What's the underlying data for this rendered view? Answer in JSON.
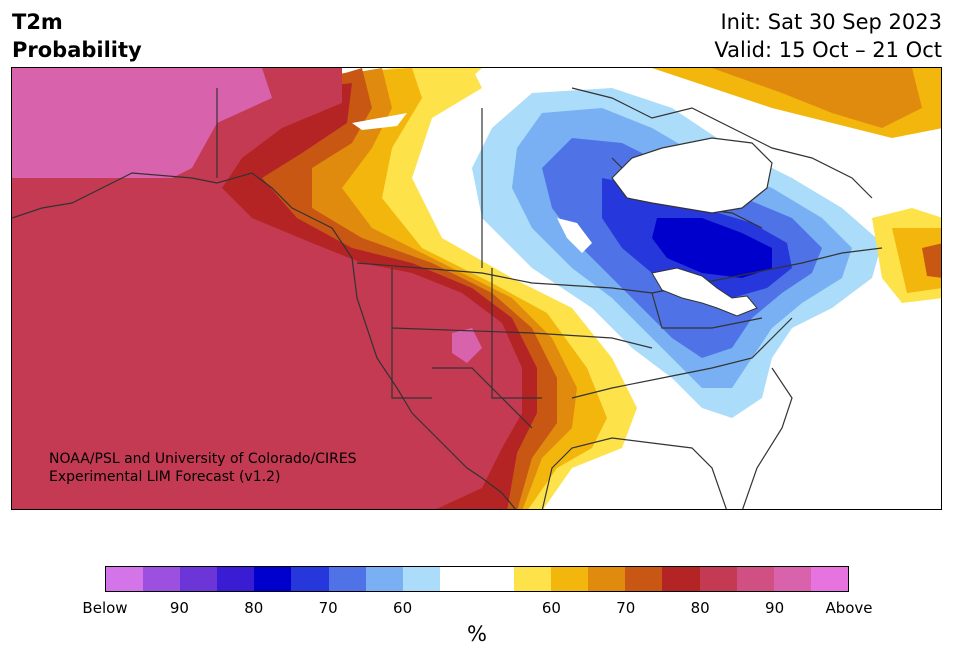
{
  "header": {
    "variable": "T2m",
    "product": "Probability",
    "init": "Init: Sat 30 Sep 2023",
    "valid": "Valid: 15 Oct – 21 Oct"
  },
  "credit": {
    "line1": "NOAA/PSL and University of Colorado/CIRES",
    "line2": "Experimental LIM Forecast (v1.2)"
  },
  "colorbar": {
    "unit": "%",
    "segments": [
      "#d374e9",
      "#9b50e0",
      "#6b35d8",
      "#3a1dd2",
      "#0000cc",
      "#2638db",
      "#4f73e6",
      "#79b0f3",
      "#abdcfa",
      "#ffffff",
      "#ffffff",
      "#fde24a",
      "#f3b60d",
      "#e08b0d",
      "#c95714",
      "#b42424",
      "#c43a52",
      "#d05083",
      "#d962ad",
      "#e774de"
    ],
    "ticks": [
      "Below",
      "90",
      "80",
      "70",
      "60",
      "60",
      "70",
      "80",
      "90",
      "Above"
    ]
  },
  "map": {
    "region": "North America",
    "colors": {
      "above_90": "#d962ad",
      "above_80": "#c43a52",
      "above_75": "#b42424",
      "above_70": "#c95714",
      "above_65": "#e08b0d",
      "above_60": "#f3b60d",
      "above_55": "#fde24a",
      "below_55": "#abdcfa",
      "below_60": "#79b0f3",
      "below_65": "#4f73e6",
      "below_70": "#2638db",
      "below_75": "#0000cc",
      "border": "#333333"
    }
  }
}
